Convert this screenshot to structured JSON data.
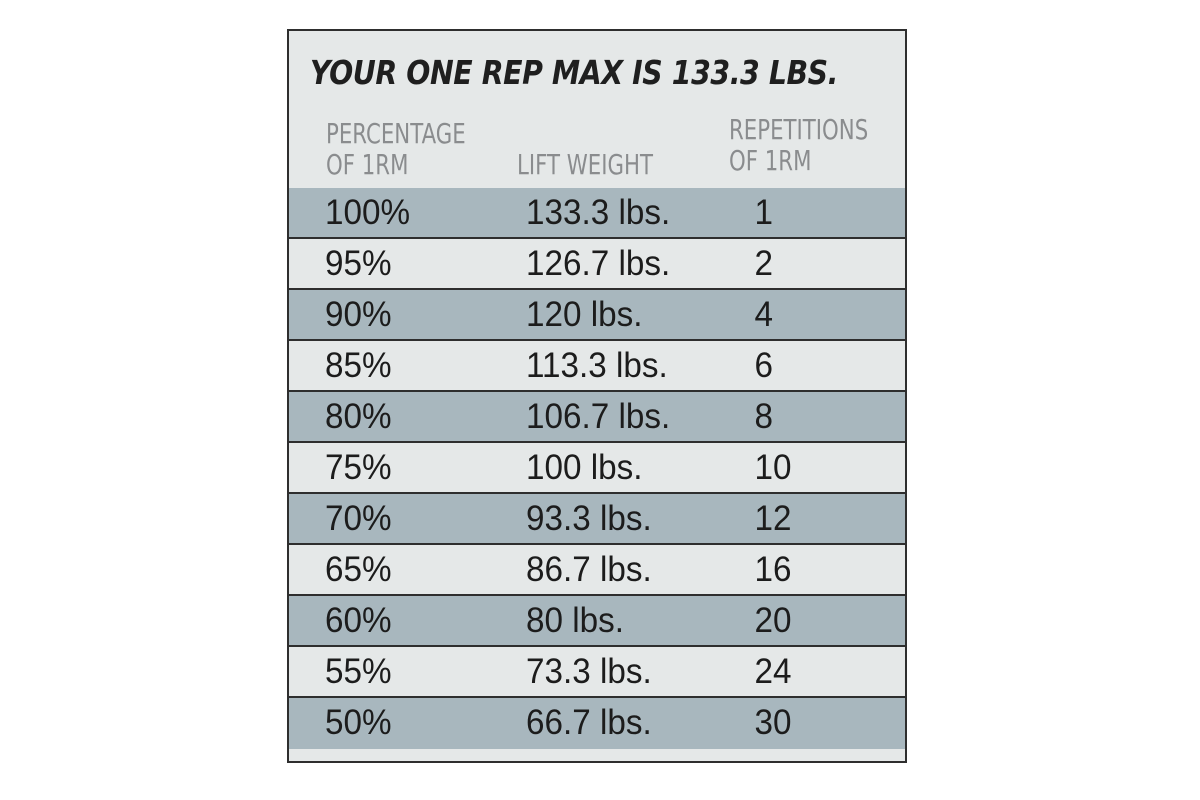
{
  "title": "YOUR ONE REP MAX IS 133.3 LBS.",
  "columns": {
    "percentage": "PERCENTAGE\nOF 1RM",
    "weight": "LIFT WEIGHT",
    "reps": "REPETITIONS\nOF 1RM"
  },
  "colors": {
    "dark_row": "#a8b7be",
    "light_row": "#e5e8e8",
    "border": "#2e2e2e",
    "header_text": "#8a8c8e"
  },
  "chart_data": {
    "type": "table",
    "title": "YOUR ONE REP MAX IS 133.3 LBS.",
    "headers": [
      "PERCENTAGE OF 1RM",
      "LIFT WEIGHT",
      "REPETITIONS OF 1RM"
    ],
    "rows": [
      {
        "pct": "100%",
        "weight": "133.3 lbs.",
        "reps": "1"
      },
      {
        "pct": "95%",
        "weight": "126.7 lbs.",
        "reps": "2"
      },
      {
        "pct": "90%",
        "weight": "120 lbs.",
        "reps": "4"
      },
      {
        "pct": "85%",
        "weight": "113.3 lbs.",
        "reps": "6"
      },
      {
        "pct": "80%",
        "weight": "106.7 lbs.",
        "reps": "8"
      },
      {
        "pct": "75%",
        "weight": "100 lbs.",
        "reps": "10"
      },
      {
        "pct": "70%",
        "weight": "93.3 lbs.",
        "reps": "12"
      },
      {
        "pct": "65%",
        "weight": "86.7 lbs.",
        "reps": "16"
      },
      {
        "pct": "60%",
        "weight": "80 lbs.",
        "reps": "20"
      },
      {
        "pct": "55%",
        "weight": "73.3 lbs.",
        "reps": "24"
      },
      {
        "pct": "50%",
        "weight": "66.7 lbs.",
        "reps": "30"
      }
    ]
  }
}
